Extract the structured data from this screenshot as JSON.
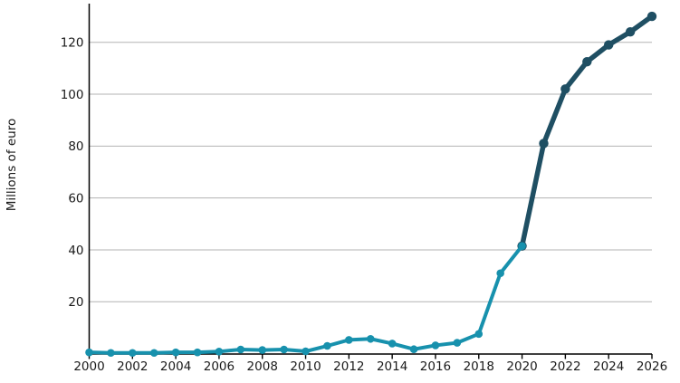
{
  "page": {
    "background_color": "#ffffff"
  },
  "chart_data": {
    "type": "line",
    "title": "",
    "xlabel": "",
    "ylabel": "Millions of euro",
    "xlim": [
      2000,
      2026
    ],
    "ylim": [
      0,
      135
    ],
    "x_ticks": [
      2000,
      2002,
      2004,
      2006,
      2008,
      2010,
      2012,
      2014,
      2016,
      2018,
      2020,
      2022,
      2024,
      2026
    ],
    "y_ticks": [
      20,
      40,
      60,
      80,
      100,
      120
    ],
    "grid": "horizontal-only",
    "legend_position": "none",
    "colors": {
      "axis": "#000000",
      "gridline": "#b3b3b3",
      "tick_text": "#1a1a1a",
      "series_teal": "#1791ad",
      "series_dark_blue": "#1f4f63"
    },
    "series": [
      {
        "name": "series-2000-2020-teal",
        "color": "#1791ad",
        "x": [
          2000,
          2001,
          2002,
          2003,
          2004,
          2005,
          2006,
          2007,
          2008,
          2009,
          2010,
          2011,
          2012,
          2013,
          2014,
          2015,
          2016,
          2017,
          2018,
          2019,
          2020
        ],
        "values": [
          0.5,
          0.3,
          0.3,
          0.3,
          0.5,
          0.5,
          0.8,
          1.6,
          1.4,
          1.6,
          0.9,
          3,
          5.3,
          5.7,
          3.9,
          1.7,
          3.2,
          4.2,
          7.6,
          31,
          41.5
        ]
      },
      {
        "name": "series-2020-2026-dark-blue",
        "color": "#1f4f63",
        "x": [
          2020,
          2021,
          2022,
          2023,
          2024,
          2025,
          2026
        ],
        "values": [
          41.5,
          81,
          102,
          112.5,
          119,
          124,
          130
        ]
      }
    ]
  }
}
